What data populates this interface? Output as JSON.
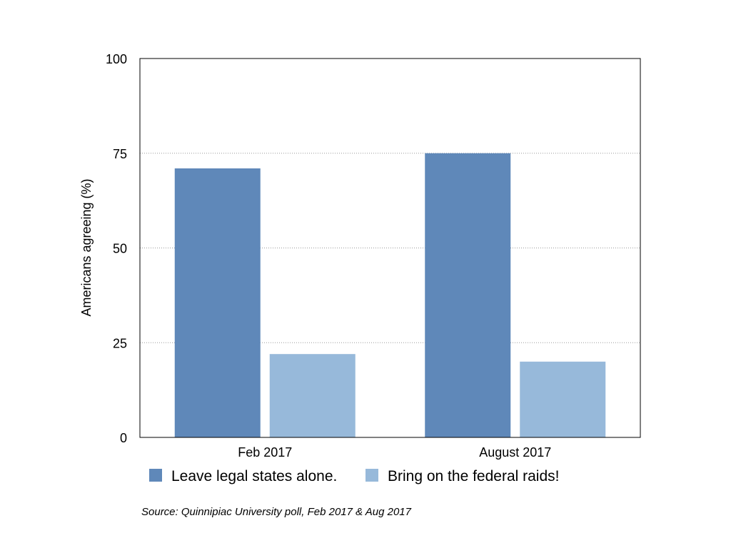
{
  "chart_data": {
    "type": "bar",
    "categories": [
      "Feb 2017",
      "August 2017"
    ],
    "series": [
      {
        "name": "Leave legal states alone.",
        "values": [
          71,
          75
        ],
        "color": "#5f88b9"
      },
      {
        "name": "Bring on the federal raids!",
        "values": [
          22,
          20
        ],
        "color": "#97b9da"
      }
    ],
    "ylabel": "Americans agreeing (%)",
    "ylim": [
      0,
      100
    ],
    "yticks": [
      0,
      25,
      50,
      75,
      100
    ],
    "grid": true,
    "legend": "bottom",
    "source": "Source: Quinnipiac University poll, Feb 2017 & Aug 2017"
  }
}
